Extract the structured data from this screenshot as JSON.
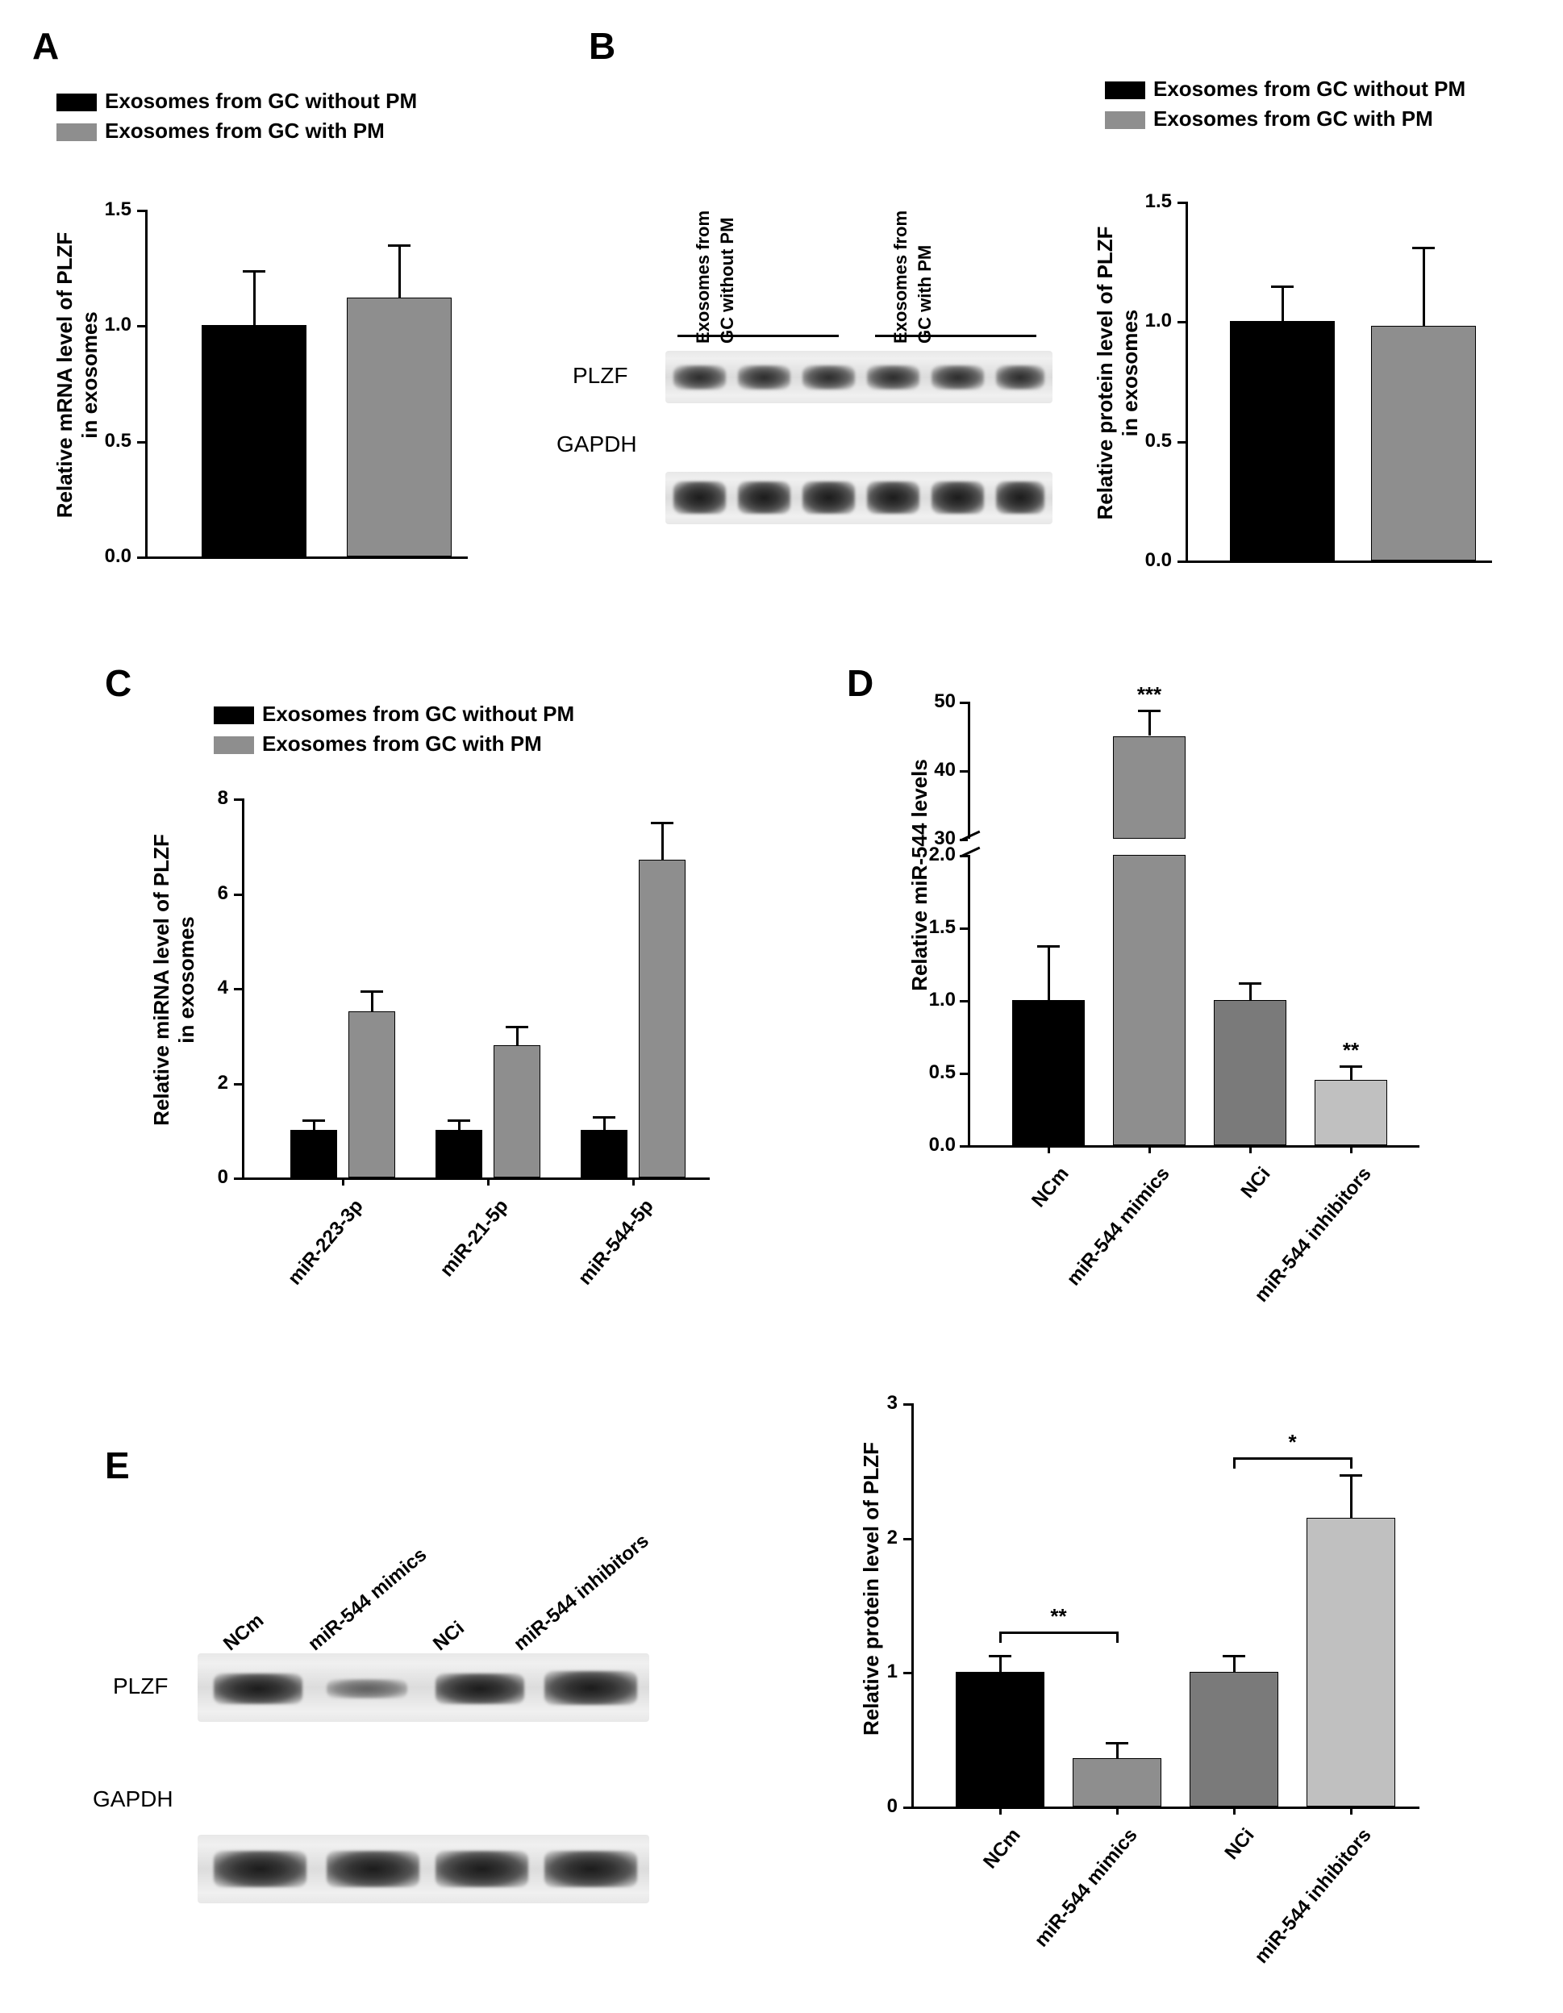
{
  "colors": {
    "black_bar": "#000000",
    "gray_bar": "#8e8e8e",
    "darkgray_bar": "#7a7a7a",
    "lightgray_bar": "#c0c0c0",
    "axis": "#000000",
    "bg": "#ffffff"
  },
  "panel_labels": {
    "A": "A",
    "B": "B",
    "C": "C",
    "D": "D",
    "E": "E"
  },
  "legend_two": {
    "item1": "Exosomes from GC without PM",
    "item2": "Exosomes from GC with PM"
  },
  "panelA": {
    "y_label": "Relative mRNA level of PLZF\nin exosomes",
    "ylim": [
      0.0,
      1.5
    ],
    "ytick_step": 0.5,
    "bars": [
      {
        "value": 1.0,
        "err": 0.24,
        "color": "#000000"
      },
      {
        "value": 1.12,
        "err": 0.23,
        "color": "#8e8e8e"
      }
    ]
  },
  "panelB_blot": {
    "headers": [
      "Exosomes from",
      "GC without PM",
      "Exosomes from",
      "GC with PM"
    ],
    "rows": [
      {
        "label": "PLZF",
        "bands": [
          0.6,
          0.6,
          0.55,
          0.5,
          0.7,
          0.55
        ]
      },
      {
        "label": "GAPDH",
        "bands": [
          1,
          1,
          1,
          1,
          1,
          1
        ]
      }
    ]
  },
  "panelB_chart": {
    "y_label": "Relative protein level of PLZF\nin exosomes",
    "ylim": [
      0.0,
      1.5
    ],
    "ytick_step": 0.5,
    "bars": [
      {
        "value": 1.0,
        "err": 0.15,
        "color": "#000000"
      },
      {
        "value": 0.98,
        "err": 0.33,
        "color": "#8e8e8e"
      }
    ]
  },
  "panelC": {
    "y_label": "Relative miRNA level of PLZF\nin exosomes",
    "ylim": [
      0,
      8
    ],
    "ytick_step": 2,
    "categories": [
      "miR-223-3p",
      "miR-21-5p",
      "miR-544-5p"
    ],
    "groups": [
      {
        "color": "#000000",
        "values": [
          1.0,
          1.0,
          1.0
        ],
        "err": [
          0.22,
          0.22,
          0.3
        ]
      },
      {
        "color": "#8e8e8e",
        "values": [
          3.5,
          2.8,
          6.7
        ],
        "err": [
          0.45,
          0.4,
          0.8
        ]
      }
    ]
  },
  "panelD": {
    "y_label": "Relative miR-544 levels",
    "y_lower": {
      "ylim": [
        0.0,
        2.0
      ],
      "ytick_step": 0.5
    },
    "y_upper": {
      "ylim": [
        30,
        50
      ],
      "ytick_step": 10
    },
    "categories": [
      "NCm",
      "miR-544 mimics",
      "NCi",
      "miR-544 inhibitors"
    ],
    "bars": [
      {
        "value": 1.0,
        "err": 0.38,
        "color": "#000000",
        "segment": "lower"
      },
      {
        "value": 45.0,
        "err": 3.8,
        "color": "#8e8e8e",
        "segment": "upper",
        "sig": "***"
      },
      {
        "value": 1.0,
        "err": 0.12,
        "color": "#7a7a7a",
        "segment": "lower"
      },
      {
        "value": 0.45,
        "err": 0.1,
        "color": "#c0c0c0",
        "segment": "lower",
        "sig": "**"
      }
    ]
  },
  "panelE_blot": {
    "headers": [
      "NCm",
      "miR-544 mimics",
      "NCi",
      "miR-544 inhibitors"
    ],
    "rows": [
      {
        "label": "PLZF",
        "bands": [
          0.85,
          0.35,
          0.85,
          0.95
        ]
      },
      {
        "label": "GAPDH",
        "bands": [
          1,
          1,
          1,
          1
        ]
      }
    ]
  },
  "panelE_chart": {
    "y_label": "Relative protein level of PLZF",
    "ylim": [
      0,
      3
    ],
    "ytick_step": 1,
    "categories": [
      "NCm",
      "miR-544 mimics",
      "NCi",
      "miR-544 inhibitors"
    ],
    "bars": [
      {
        "value": 1.0,
        "err": 0.13,
        "color": "#000000"
      },
      {
        "value": 0.36,
        "err": 0.12,
        "color": "#8e8e8e"
      },
      {
        "value": 1.0,
        "err": 0.13,
        "color": "#7a7a7a"
      },
      {
        "value": 2.15,
        "err": 0.32,
        "color": "#c0c0c0"
      }
    ],
    "sig_bars": [
      {
        "from": 0,
        "to": 1,
        "label": "**",
        "y": 1.3
      },
      {
        "from": 2,
        "to": 3,
        "label": "*",
        "y": 2.6
      }
    ]
  }
}
